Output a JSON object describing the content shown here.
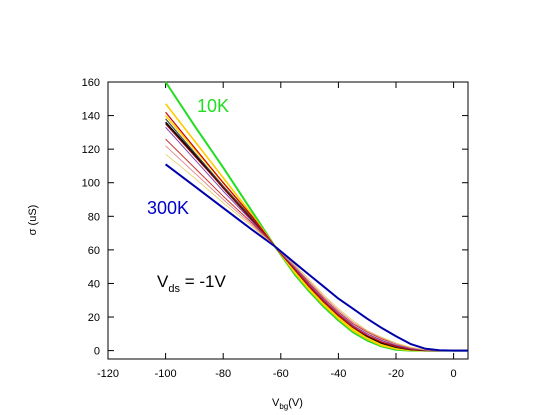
{
  "chart_data": {
    "type": "line",
    "xlabel": {
      "main": "V",
      "sub": "bg",
      "unit": "(V)"
    },
    "ylabel": "σ (uS)",
    "xlim": [
      -120,
      5
    ],
    "ylim": [
      -5,
      160
    ],
    "xticks": [
      "-120",
      "-100",
      "-80",
      "-60",
      "-40",
      "-20",
      "0"
    ],
    "yticks": [
      "0",
      "20",
      "40",
      "60",
      "80",
      "100",
      "120",
      "140",
      "160"
    ],
    "grid": false,
    "annotations": {
      "low_temp": {
        "text": "10K",
        "color": "#22dd22"
      },
      "high_temp": {
        "text": "300K",
        "color": "#0000cc"
      },
      "vds": {
        "main": "V",
        "sub": "ds",
        "rest": " = -1V"
      }
    },
    "series": [
      {
        "color": "#22dd22",
        "width": 2.0,
        "x": [
          -100,
          -90,
          -80,
          -70,
          -62,
          -55,
          -50,
          -45,
          -40,
          -35,
          -30,
          -25,
          -20,
          -15,
          -10,
          -5,
          0,
          5
        ],
        "y": [
          160,
          134,
          109,
          83,
          62,
          45,
          35,
          26,
          18,
          11,
          6,
          2.5,
          0.5,
          0,
          0,
          0,
          0,
          0
        ]
      },
      {
        "color": "#ffcc00",
        "width": 1.6,
        "x": [
          -100,
          -90,
          -80,
          -70,
          -62,
          -55,
          -50,
          -45,
          -40,
          -35,
          -30,
          -25,
          -20,
          -15,
          -10,
          -5,
          0,
          5
        ],
        "y": [
          147,
          125,
          103,
          81,
          62,
          46,
          36,
          27,
          19,
          12,
          7,
          3,
          1,
          0.2,
          0,
          0,
          0,
          0
        ]
      },
      {
        "color": "#ffd700",
        "width": 1.6,
        "x": [
          -100,
          -90,
          -80,
          -70,
          -62,
          -55,
          -50,
          -45,
          -40,
          -35,
          -30,
          -25,
          -20,
          -15,
          -10,
          -5,
          0,
          5
        ],
        "y": [
          140,
          120,
          100,
          80,
          62,
          47,
          37,
          28,
          20,
          13,
          8,
          4,
          1.5,
          0.3,
          0,
          0,
          0,
          0
        ]
      },
      {
        "color": "#000000",
        "width": 1.6,
        "x": [
          -100,
          -90,
          -80,
          -70,
          -62,
          -55,
          -50,
          -45,
          -40,
          -35,
          -30,
          -25,
          -20,
          -15,
          -10,
          -5,
          0,
          5
        ],
        "y": [
          136,
          117,
          97,
          78,
          62,
          48,
          38,
          29,
          21,
          14,
          8.5,
          4.5,
          2,
          0.6,
          0.1,
          0,
          0,
          0
        ]
      },
      {
        "color": "#444444",
        "width": 1.2,
        "x": [
          -100,
          -90,
          -80,
          -70,
          -62,
          -55,
          -50,
          -45,
          -40,
          -35,
          -30,
          -25,
          -20,
          -15,
          -10,
          -5,
          0,
          5
        ],
        "y": [
          138,
          118,
          98,
          79,
          62,
          48,
          38,
          29,
          21,
          14,
          9,
          5,
          2.2,
          0.7,
          0.1,
          0,
          0,
          0
        ]
      },
      {
        "color": "#cc0000",
        "width": 1.2,
        "x": [
          -100,
          -90,
          -80,
          -70,
          -62,
          -55,
          -50,
          -45,
          -40,
          -35,
          -30,
          -25,
          -20,
          -15,
          -10,
          -5,
          0,
          5
        ],
        "y": [
          142,
          121,
          100,
          80,
          62,
          48,
          38,
          29,
          21,
          14,
          9,
          5,
          2.5,
          0.8,
          0.2,
          0,
          0,
          0
        ]
      },
      {
        "color": "#990000",
        "width": 1.0,
        "x": [
          -100,
          -90,
          -80,
          -70,
          -62,
          -55,
          -50,
          -45,
          -40,
          -35,
          -30,
          -25,
          -20,
          -15,
          -10,
          -5,
          0,
          5
        ],
        "y": [
          135,
          116,
          97,
          78,
          62,
          49,
          39,
          30,
          22,
          15,
          10,
          6,
          3,
          1,
          0.2,
          0,
          0,
          0
        ]
      },
      {
        "color": "#8844aa",
        "width": 1.0,
        "x": [
          -100,
          -90,
          -80,
          -70,
          -62,
          -55,
          -50,
          -45,
          -40,
          -35,
          -30,
          -25,
          -20,
          -15,
          -10,
          -5,
          0,
          5
        ],
        "y": [
          133,
          114,
          95,
          77,
          62,
          49,
          39,
          30,
          22,
          15,
          10,
          6,
          3.2,
          1.2,
          0.3,
          0,
          0,
          0
        ]
      },
      {
        "color": "#cc3333",
        "width": 1.0,
        "x": [
          -100,
          -90,
          -80,
          -70,
          -62,
          -55,
          -50,
          -45,
          -40,
          -35,
          -30,
          -25,
          -20,
          -15,
          -10,
          -5,
          0,
          5
        ],
        "y": [
          126,
          109,
          92,
          76,
          62,
          50,
          40,
          31,
          23,
          16,
          11,
          7,
          4,
          1.6,
          0.4,
          0,
          0,
          0
        ]
      },
      {
        "color": "#dd8888",
        "width": 0.9,
        "x": [
          -100,
          -90,
          -80,
          -70,
          -62,
          -55,
          -50,
          -45,
          -40,
          -35,
          -30,
          -25,
          -20,
          -15,
          -10,
          -5,
          0,
          5
        ],
        "y": [
          122,
          106,
          90,
          75,
          62,
          50,
          41,
          32,
          24,
          17,
          11.5,
          7.5,
          4.2,
          1.8,
          0.5,
          0,
          0,
          0
        ]
      },
      {
        "color": "#e8d070",
        "width": 0.9,
        "x": [
          -100,
          -90,
          -80,
          -70,
          -62,
          -55,
          -50,
          -45,
          -40,
          -35,
          -30,
          -25,
          -20,
          -15,
          -10,
          -5,
          0,
          5
        ],
        "y": [
          117,
          103,
          88,
          74,
          62,
          51,
          42,
          33,
          25,
          18,
          12,
          8,
          4.5,
          2,
          0.6,
          0,
          0,
          0
        ]
      },
      {
        "color": "#0000aa",
        "width": 2.0,
        "x": [
          -100,
          -90,
          -80,
          -70,
          -62,
          -55,
          -50,
          -45,
          -40,
          -35,
          -30,
          -25,
          -20,
          -15,
          -10,
          -5,
          0,
          5
        ],
        "y": [
          111,
          98,
          85,
          72,
          62,
          52,
          45,
          38,
          31,
          25,
          19,
          13.5,
          8.5,
          4,
          1.2,
          0.2,
          0,
          0
        ]
      }
    ]
  }
}
